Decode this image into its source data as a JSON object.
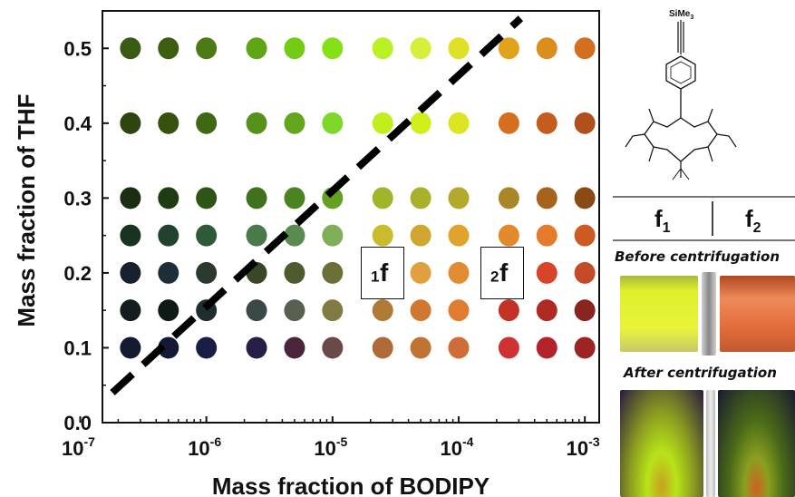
{
  "chart_data": {
    "type": "scatter",
    "x_scale": "log",
    "xlabel": "Mass fraction of BODIPY",
    "ylabel": "Mass fraction of THF",
    "xlim": [
      1.5e-07,
      0.0013
    ],
    "ylim": [
      0,
      0.55
    ],
    "x_ticks": [
      1e-07,
      1e-06,
      1e-05,
      0.0001,
      0.001
    ],
    "x_tick_labels": [
      {
        "base": "10",
        "exp": "-7"
      },
      {
        "base": "10",
        "exp": "-6"
      },
      {
        "base": "10",
        "exp": "-5"
      },
      {
        "base": "10",
        "exp": "-4"
      },
      {
        "base": "10",
        "exp": "-3"
      }
    ],
    "y_ticks": [
      0.0,
      0.1,
      0.2,
      0.3,
      0.4,
      0.5
    ],
    "y_tick_labels": [
      "0.0",
      "0.1",
      "0.2",
      "0.3",
      "0.4",
      "0.5"
    ],
    "x_values": [
      2.5e-07,
      5e-07,
      1e-06,
      2.5e-06,
      5e-06,
      1e-05,
      2.5e-05,
      5e-05,
      0.0001,
      0.00025,
      0.0005,
      0.001
    ],
    "rows": [
      {
        "y": 0.5,
        "colors": [
          "#3b5a12",
          "#3d5e10",
          "#4a7b14",
          "#5fa515",
          "#73cc14",
          "#86e018",
          "#b8f224",
          "#d7ee3a",
          "#e0e026",
          "#e2a21a",
          "#dc8e1c",
          "#d27020"
        ]
      },
      {
        "y": 0.4,
        "colors": [
          "#2e4411",
          "#35520f",
          "#3f6812",
          "#56921a",
          "#63a61e",
          "#7fd72a",
          "#c3ee1e",
          "#d2ee1a",
          "#dde422",
          "#d56e1e",
          "#c55c1d",
          "#b0501c"
        ]
      },
      {
        "y": 0.3,
        "colors": [
          "#1b2e12",
          "#1e3c14",
          "#2e5418",
          "#40721e",
          "#4a8420",
          "#64a022",
          "#a2b52a",
          "#a9b02a",
          "#b3a92c",
          "#a88826",
          "#a7621c",
          "#8a4a16"
        ]
      },
      {
        "y": 0.25,
        "colors": [
          "#1a3222",
          "#224230",
          "#2e5a38",
          "#4a7a4a",
          "#5a8a50",
          "#80ae58",
          "#c8bc2c",
          "#d0a630",
          "#e0a42c",
          "#e28a2a",
          "#e47a2a",
          "#cc5a22"
        ]
      },
      {
        "y": 0.2,
        "colors": [
          "#18222e",
          "#1e2e38",
          "#2c3a2e",
          "#3a4628",
          "#4e5a30",
          "#6c7038",
          "#b0a030",
          "#e0a040",
          "#e08c30",
          "#e05428",
          "#d84428",
          "#c44a28"
        ]
      },
      {
        "y": 0.15,
        "colors": [
          "#141e20",
          "#0e1a16",
          "#1e2e30",
          "#3a4848",
          "#586050",
          "#807a44",
          "#ae7a36",
          "#d07830",
          "#e07c30",
          "#c43226",
          "#b02a24",
          "#8a2420"
        ]
      },
      {
        "y": 0.1,
        "colors": [
          "#161a30",
          "#141a36",
          "#1a1e44",
          "#281e46",
          "#4a263c",
          "#6a4a48",
          "#b06a38",
          "#c07432",
          "#d06c36",
          "#ce3232",
          "#b4222a",
          "#9c2424"
        ]
      }
    ],
    "annotations": [
      {
        "label": "f",
        "sub": "1",
        "near_x": 2.5e-05,
        "near_y": 0.2
      },
      {
        "label": "f",
        "sub": "2",
        "near_x": 0.00025,
        "near_y": 0.2
      }
    ],
    "diagonal_line": {
      "style": "dashed",
      "from": {
        "x": 1.8e-07,
        "y": 0.04
      },
      "to": {
        "x": 0.00031,
        "y": 0.54
      }
    }
  },
  "panel": {
    "structure_label": "SiMe",
    "structure_sub": "3",
    "col1_label": "f",
    "col1_sub": "1",
    "col2_label": "f",
    "col2_sub": "2",
    "before_caption": "Before centrifugation",
    "after_caption": "After centrifugation"
  },
  "colors": {
    "dash_line": "#000000",
    "axis": "#111111"
  }
}
